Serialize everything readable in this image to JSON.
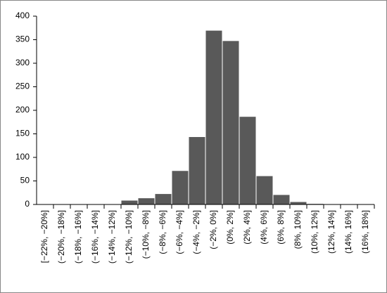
{
  "chart_data": {
    "type": "bar",
    "categories": [
      "[−22%, −20%]",
      "(−20%, −18%]",
      "(−18%, −16%]",
      "(−16%, −14%]",
      "(−14%, −12%]",
      "(−12%, −10%]",
      "(−10%, −8%]",
      "(−8%, −6%]",
      "(−6%, −4%]",
      "(−4%, −2%]",
      "(−2%, 0%]",
      "(0%, 2%]",
      "(2%, 4%]",
      "(4%, 6%]",
      "(6%, 8%]",
      "(8%, 10%]",
      "(10%, 12%]",
      "(12%, 14%]",
      "(14%, 16%]",
      "(16%, 18%]"
    ],
    "values": [
      0,
      0,
      0,
      0,
      1,
      9,
      14,
      23,
      72,
      144,
      370,
      348,
      187,
      61,
      21,
      6,
      2,
      0,
      0,
      0
    ],
    "color": "#595959",
    "ylim": [
      0,
      400
    ],
    "yticks": [
      0,
      50,
      100,
      150,
      200,
      250,
      300,
      350,
      400
    ]
  }
}
